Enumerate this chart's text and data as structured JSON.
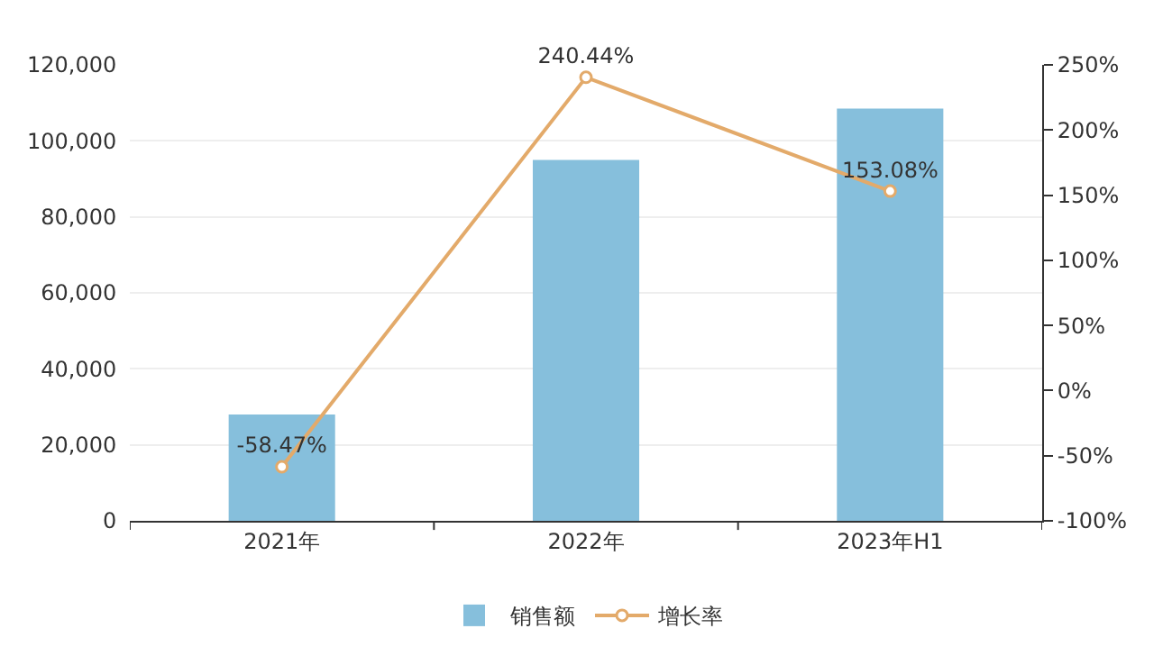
{
  "chart_data": {
    "type": "bar",
    "categories": [
      "2021年",
      "2022年",
      "2023年H1"
    ],
    "series": [
      {
        "name": "销售额",
        "color": "#86bfdc",
        "values": [
          28000,
          95000,
          108500
        ]
      },
      {
        "name": "增长率",
        "type": "line",
        "axis": "y2",
        "color": "#e3aa6a",
        "values": [
          -58.47,
          240.44,
          153.08
        ],
        "value_labels": [
          "-58.47%",
          "240.44%",
          "153.08%"
        ],
        "marker": "circle"
      }
    ],
    "ylim": [
      0,
      120000
    ],
    "yticks": [
      {
        "value": 0,
        "label": "0"
      },
      {
        "value": 20000,
        "label": "20,000"
      },
      {
        "value": 40000,
        "label": "40,000"
      },
      {
        "value": 60000,
        "label": "60,000"
      },
      {
        "value": 80000,
        "label": "80,000"
      },
      {
        "value": 100000,
        "label": "100,000"
      },
      {
        "value": 120000,
        "label": "120,000"
      }
    ],
    "y2lim": [
      -100,
      250
    ],
    "y2ticks": [
      {
        "value": -100,
        "label": "-100%"
      },
      {
        "value": -50,
        "label": "-50%"
      },
      {
        "value": 0,
        "label": "0%"
      },
      {
        "value": 50,
        "label": "50%"
      },
      {
        "value": 100,
        "label": "100%"
      },
      {
        "value": 150,
        "label": "150%"
      },
      {
        "value": 200,
        "label": "200%"
      },
      {
        "value": 250,
        "label": "250%"
      }
    ],
    "grid": "y",
    "legend": "bottom"
  }
}
